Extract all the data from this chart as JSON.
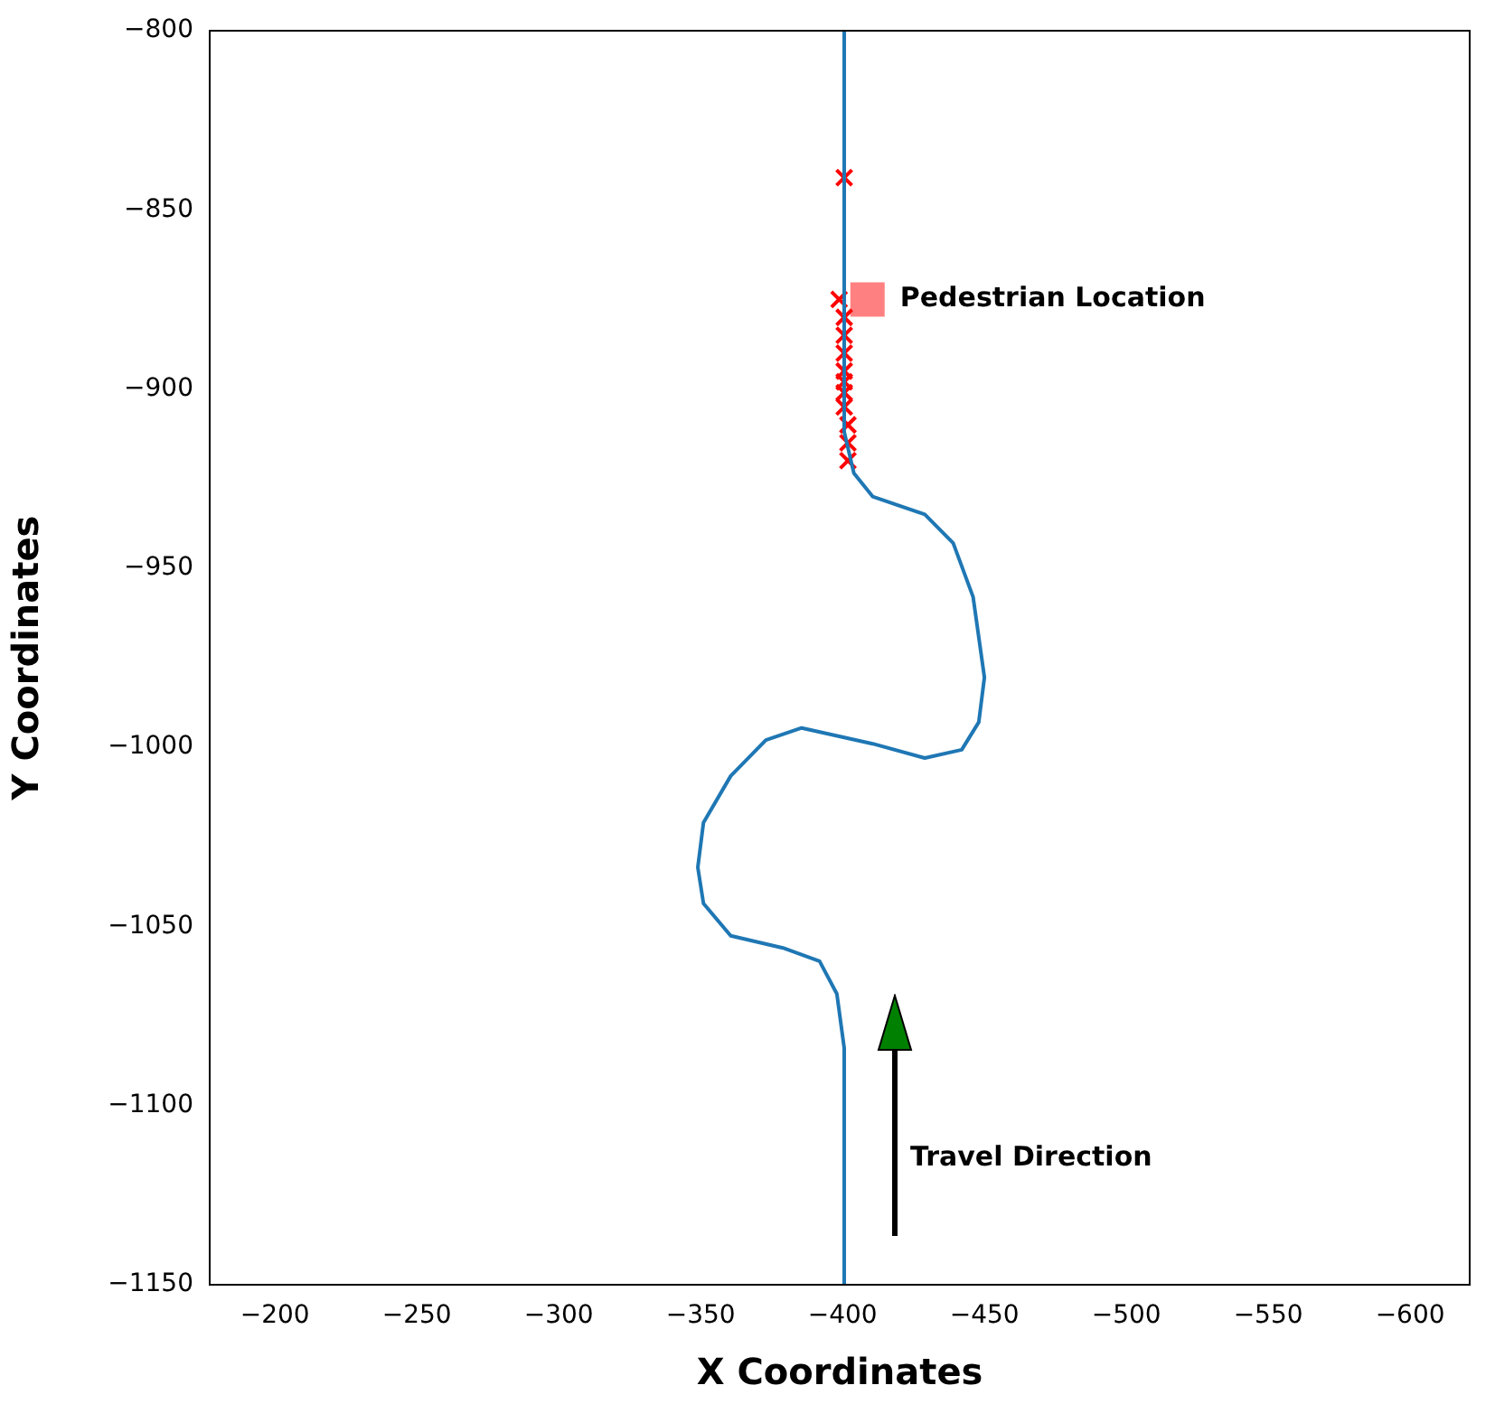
{
  "chart_data": {
    "type": "line",
    "xlabel": "X Coordinates",
    "ylabel": "Y Coordinates",
    "xlim": [
      -177,
      -621
    ],
    "ylim": [
      -1150,
      -800
    ],
    "xticks": [
      -200,
      -250,
      -300,
      -350,
      -400,
      -450,
      -500,
      -550,
      -600
    ],
    "yticks": [
      -800,
      -850,
      -900,
      -950,
      -1000,
      -1050,
      -1100,
      -1150
    ],
    "grid": false,
    "legend": false,
    "series": [
      {
        "type": "line",
        "color": "#1f77b4",
        "marker": "none",
        "x": [
          -400.6,
          -400.6,
          -404,
          -410.6,
          -429,
          -439,
          -446,
          -450,
          -448,
          -442,
          -429,
          -410.6,
          -385.6,
          -373,
          -360.6,
          -351,
          -349,
          -351,
          -360.6,
          -379,
          -391.9,
          -398,
          -400.6,
          -400.6
        ],
        "values": [
          -800,
          -912,
          -923.5,
          -930,
          -935,
          -943,
          -958,
          -980.5,
          -993,
          -1000.7,
          -1003,
          -999,
          -994.6,
          -998,
          -1008,
          -1021,
          -1033.5,
          -1043.6,
          -1052.6,
          -1056,
          -1059.7,
          -1068.8,
          -1084,
          -1150
        ]
      },
      {
        "type": "scatter",
        "color": "#ff0000",
        "marker": "cross",
        "x": [
          -400.6,
          -398.8,
          -400.6,
          -400.6,
          -400.6,
          -400.6,
          -400.6,
          -400.6,
          -400.6,
          -401.9,
          -401.9,
          -401.9
        ],
        "values": [
          -841,
          -875,
          -880,
          -885,
          -890,
          -895,
          -898,
          -901,
          -905,
          -910,
          -915,
          -920
        ]
      },
      {
        "type": "scatter",
        "color": "#ff8080",
        "marker": "square",
        "x": [
          -408.8
        ],
        "values": [
          -875
        ]
      }
    ],
    "annotations": [
      {
        "text": "Pedestrian Location",
        "x": -408.8,
        "y": -875
      },
      "Travel Direction"
    ]
  }
}
